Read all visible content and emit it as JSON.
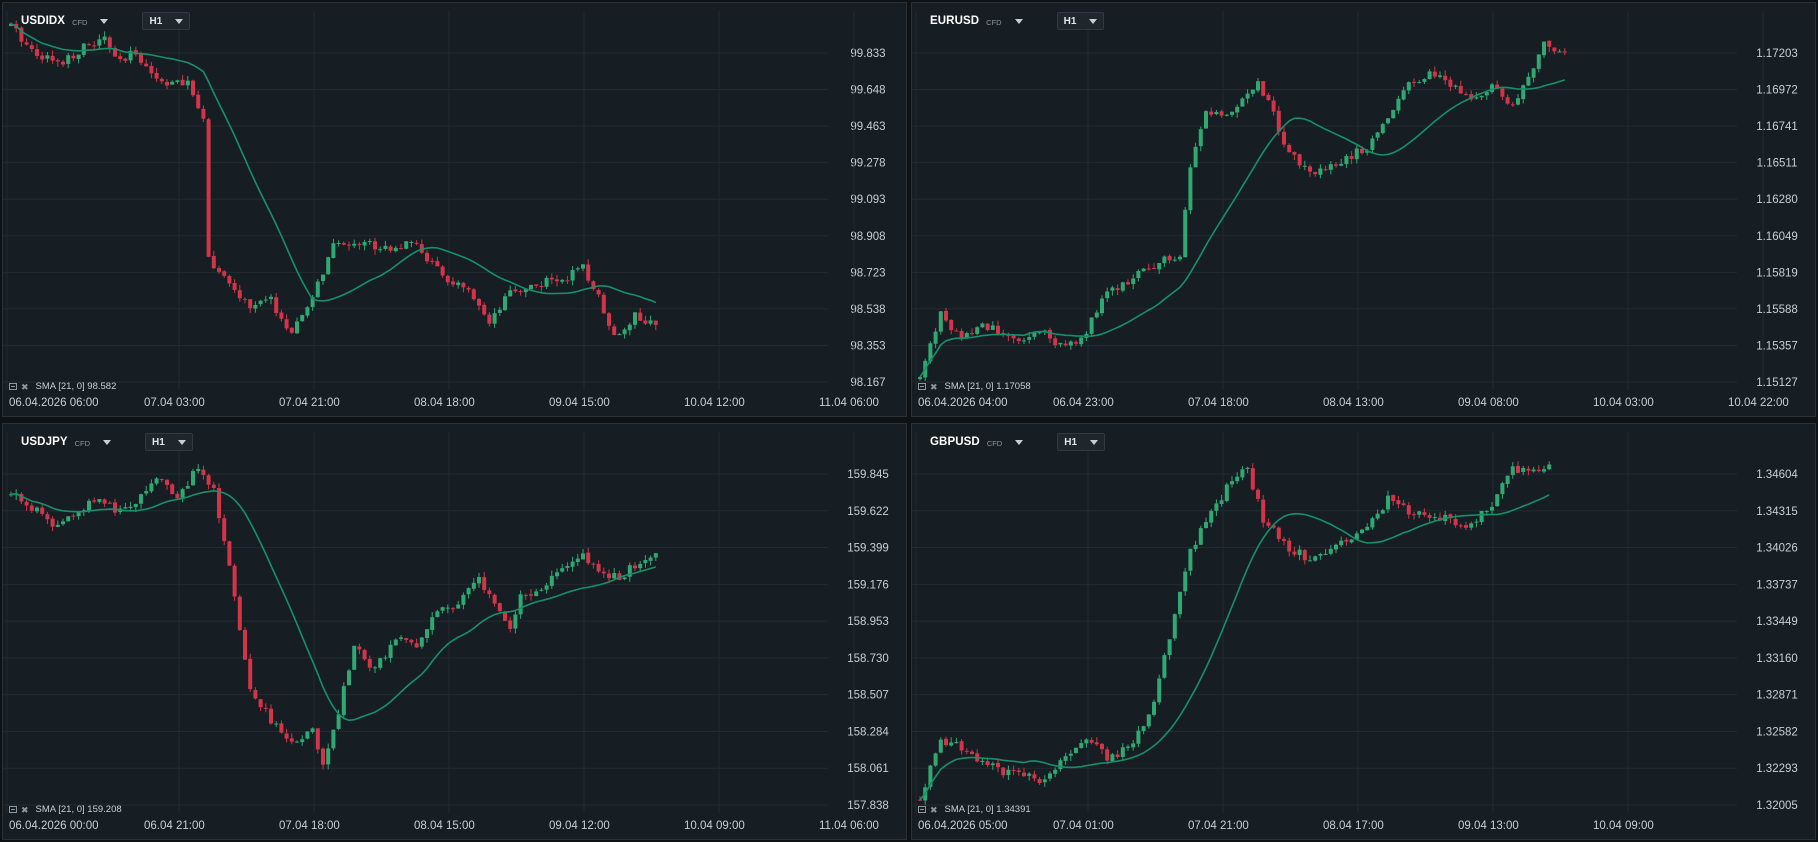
{
  "layout": {
    "cols": 2,
    "rows": 2
  },
  "colors": {
    "background": "#171e23",
    "grid": "#222b31",
    "up": "#2fa872",
    "down": "#d2344a",
    "sma": "#16906a",
    "axis_text": "#c9ced2"
  },
  "panels": [
    {
      "symbol": "USDIDX",
      "type_badge": "CFD",
      "timeframe": "H1",
      "legend": "SMA [21, 0] 98.582",
      "y_labels": [
        "99.833",
        "99.648",
        "99.463",
        "99.278",
        "99.093",
        "98.908",
        "98.723",
        "98.538",
        "98.353",
        "98.167"
      ],
      "x_labels": [
        "06.04.2026 06:00",
        "07.04 03:00",
        "07.04 21:00",
        "08.04 18:00",
        "09.04 15:00",
        "10.04 12:00",
        "11.04 06:00"
      ]
    },
    {
      "symbol": "EURUSD",
      "type_badge": "CFD",
      "timeframe": "H1",
      "legend": "SMA [21, 0] 1.17058",
      "y_labels": [
        "1.17203",
        "1.16972",
        "1.16741",
        "1.16511",
        "1.16280",
        "1.16049",
        "1.15819",
        "1.15588",
        "1.15357",
        "1.15127"
      ],
      "x_labels": [
        "06.04.2026 04:00",
        "06.04 23:00",
        "07.04 18:00",
        "08.04 13:00",
        "09.04 08:00",
        "10.04 03:00",
        "10.04 22:00"
      ]
    },
    {
      "symbol": "USDJPY",
      "type_badge": "CFD",
      "timeframe": "H1",
      "legend": "SMA [21, 0] 159.208",
      "y_labels": [
        "159.845",
        "159.622",
        "159.399",
        "159.176",
        "158.953",
        "158.730",
        "158.507",
        "158.284",
        "158.061",
        "157.838"
      ],
      "x_labels": [
        "06.04.2026 00:00",
        "06.04 21:00",
        "07.04 18:00",
        "08.04 15:00",
        "09.04 12:00",
        "10.04 09:00",
        "11.04 06:00"
      ]
    },
    {
      "symbol": "GBPUSD",
      "type_badge": "CFD",
      "timeframe": "H1",
      "legend": "SMA [21, 0] 1.34391",
      "y_labels": [
        "1.34604",
        "1.34315",
        "1.34026",
        "1.33737",
        "1.33449",
        "1.33160",
        "1.32871",
        "1.32582",
        "1.32293",
        "1.32005"
      ],
      "x_labels": [
        "06.04.2026 05:00",
        "07.04 01:00",
        "07.04 21:00",
        "08.04 17:00",
        "09.04 13:00",
        "10.04 09:00"
      ]
    }
  ],
  "chart_data": [
    {
      "type": "candlestick",
      "title": "USDIDX",
      "ylim": [
        98.167,
        100.0
      ],
      "sma_period": 21,
      "sma_last": 98.582,
      "anchors": [
        [
          0,
          99.97
        ],
        [
          4,
          99.85
        ],
        [
          9,
          99.78
        ],
        [
          14,
          99.86
        ],
        [
          18,
          99.9
        ],
        [
          21,
          99.78
        ],
        [
          24,
          99.84
        ],
        [
          28,
          99.7
        ],
        [
          34,
          99.67
        ],
        [
          37,
          99.52
        ],
        [
          38,
          98.8
        ],
        [
          42,
          98.65
        ],
        [
          46,
          98.55
        ],
        [
          50,
          98.58
        ],
        [
          54,
          98.4
        ],
        [
          58,
          98.6
        ],
        [
          62,
          98.85
        ],
        [
          66,
          98.88
        ],
        [
          72,
          98.85
        ],
        [
          78,
          98.86
        ],
        [
          83,
          98.7
        ],
        [
          88,
          98.62
        ],
        [
          92,
          98.45
        ],
        [
          96,
          98.62
        ],
        [
          101,
          98.66
        ],
        [
          106,
          98.69
        ],
        [
          110,
          98.74
        ],
        [
          113,
          98.6
        ],
        [
          116,
          98.4
        ],
        [
          120,
          98.5
        ],
        [
          124,
          98.45
        ]
      ]
    },
    {
      "type": "candlestick",
      "title": "EURUSD",
      "ylim": [
        1.15127,
        1.1735
      ],
      "sma_period": 21,
      "sma_last": 1.17058,
      "anchors": [
        [
          0,
          1.1515
        ],
        [
          4,
          1.1555
        ],
        [
          8,
          1.154
        ],
        [
          12,
          1.1548
        ],
        [
          16,
          1.1545
        ],
        [
          20,
          1.154
        ],
        [
          24,
          1.1543
        ],
        [
          28,
          1.1533
        ],
        [
          32,
          1.1545
        ],
        [
          36,
          1.157
        ],
        [
          40,
          1.1575
        ],
        [
          44,
          1.1585
        ],
        [
          48,
          1.1592
        ],
        [
          50,
          1.159
        ],
        [
          52,
          1.165
        ],
        [
          55,
          1.1685
        ],
        [
          58,
          1.1678
        ],
        [
          62,
          1.169
        ],
        [
          65,
          1.17
        ],
        [
          68,
          1.1685
        ],
        [
          70,
          1.166
        ],
        [
          74,
          1.1648
        ],
        [
          78,
          1.1645
        ],
        [
          82,
          1.1655
        ],
        [
          86,
          1.166
        ],
        [
          90,
          1.168
        ],
        [
          94,
          1.17
        ],
        [
          98,
          1.1708
        ],
        [
          102,
          1.17
        ],
        [
          106,
          1.169
        ],
        [
          110,
          1.17
        ],
        [
          114,
          1.1685
        ],
        [
          117,
          1.1705
        ],
        [
          120,
          1.1725
        ],
        [
          124,
          1.172
        ]
      ]
    },
    {
      "type": "candlestick",
      "title": "USDJPY",
      "ylim": [
        157.838,
        160.05
      ],
      "sma_period": 21,
      "sma_last": 159.208,
      "anchors": [
        [
          0,
          159.72
        ],
        [
          4,
          159.64
        ],
        [
          8,
          159.55
        ],
        [
          12,
          159.6
        ],
        [
          16,
          159.7
        ],
        [
          20,
          159.62
        ],
        [
          24,
          159.68
        ],
        [
          28,
          159.83
        ],
        [
          32,
          159.7
        ],
        [
          36,
          159.9
        ],
        [
          39,
          159.75
        ],
        [
          42,
          159.3
        ],
        [
          46,
          158.55
        ],
        [
          50,
          158.35
        ],
        [
          54,
          158.2
        ],
        [
          58,
          158.3
        ],
        [
          60,
          158.1
        ],
        [
          63,
          158.4
        ],
        [
          66,
          158.8
        ],
        [
          70,
          158.65
        ],
        [
          74,
          158.85
        ],
        [
          78,
          158.8
        ],
        [
          82,
          159.0
        ],
        [
          86,
          159.05
        ],
        [
          90,
          159.2
        ],
        [
          94,
          159.0
        ],
        [
          96,
          158.9
        ],
        [
          98,
          159.1
        ],
        [
          102,
          159.15
        ],
        [
          106,
          159.3
        ],
        [
          110,
          159.35
        ],
        [
          114,
          159.25
        ],
        [
          117,
          159.2
        ],
        [
          120,
          159.3
        ],
        [
          124,
          159.35
        ]
      ]
    },
    {
      "type": "candlestick",
      "title": "GBPUSD",
      "ylim": [
        1.32005,
        1.348
      ],
      "sma_period": 21,
      "sma_last": 1.34391,
      "anchors": [
        [
          0,
          1.3205
        ],
        [
          4,
          1.3252
        ],
        [
          8,
          1.3245
        ],
        [
          12,
          1.3232
        ],
        [
          16,
          1.3227
        ],
        [
          20,
          1.3226
        ],
        [
          24,
          1.322
        ],
        [
          28,
          1.324
        ],
        [
          32,
          1.3255
        ],
        [
          36,
          1.3238
        ],
        [
          40,
          1.3245
        ],
        [
          44,
          1.327
        ],
        [
          48,
          1.333
        ],
        [
          52,
          1.34
        ],
        [
          56,
          1.343
        ],
        [
          60,
          1.3455
        ],
        [
          63,
          1.3465
        ],
        [
          66,
          1.3425
        ],
        [
          70,
          1.3405
        ],
        [
          74,
          1.3395
        ],
        [
          78,
          1.34
        ],
        [
          82,
          1.341
        ],
        [
          86,
          1.342
        ],
        [
          90,
          1.344
        ],
        [
          94,
          1.3432
        ],
        [
          98,
          1.3428
        ],
        [
          102,
          1.3425
        ],
        [
          106,
          1.3418
        ],
        [
          110,
          1.3438
        ],
        [
          114,
          1.3465
        ],
        [
          118,
          1.3462
        ],
        [
          121,
          1.347
        ]
      ]
    }
  ]
}
